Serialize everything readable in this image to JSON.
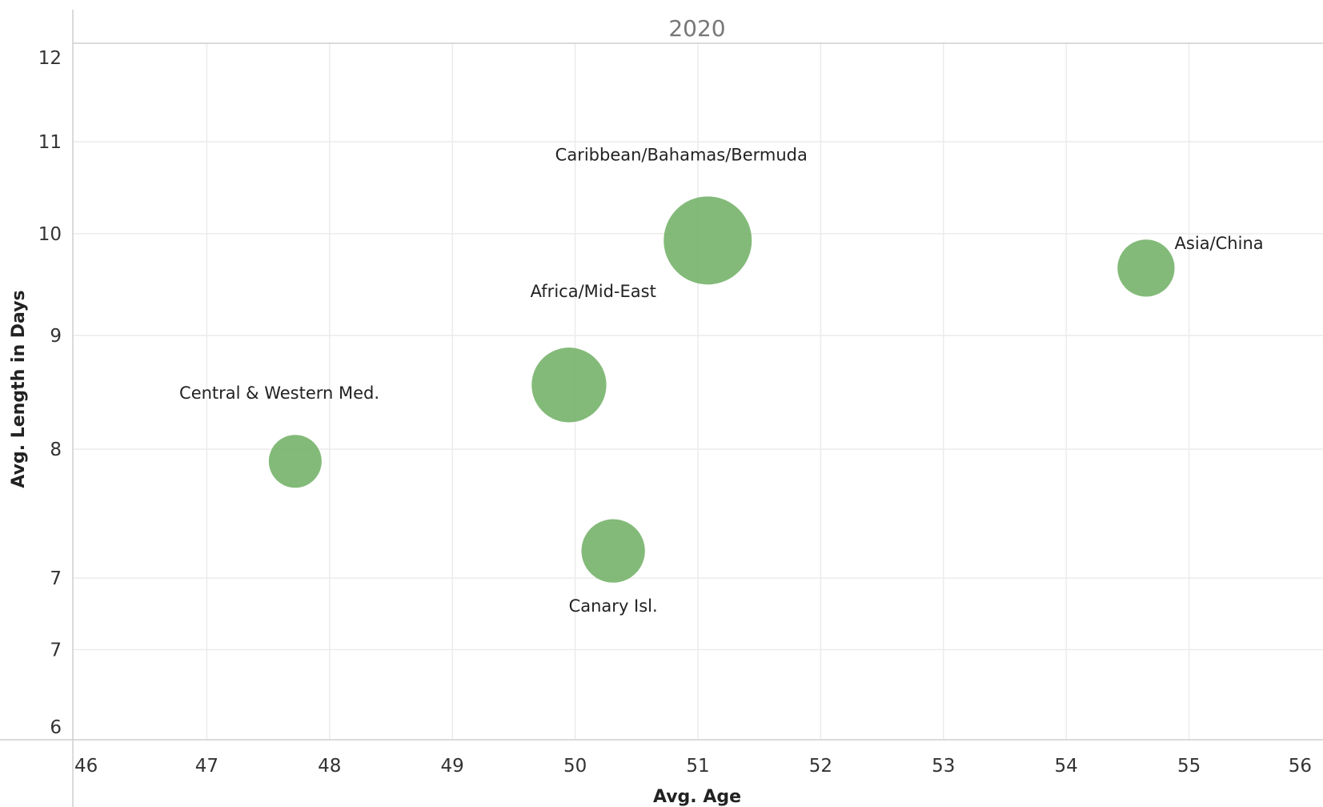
{
  "chart_data": {
    "type": "scatter",
    "panel_title": "2020",
    "xlabel": "Avg. Age",
    "ylabel": "Avg. Length in Days",
    "xlim": [
      46,
      56
    ],
    "x_ticks": [
      {
        "value": 46,
        "label": "46"
      },
      {
        "value": 47,
        "label": "47"
      },
      {
        "value": 48,
        "label": "48"
      },
      {
        "value": 49,
        "label": "49"
      },
      {
        "value": 50,
        "label": "50"
      },
      {
        "value": 51,
        "label": "51"
      },
      {
        "value": 52,
        "label": "52"
      },
      {
        "value": 53,
        "label": "53"
      },
      {
        "value": 54,
        "label": "54"
      },
      {
        "value": 55,
        "label": "55"
      },
      {
        "value": 56,
        "label": "56"
      }
    ],
    "y_scale": "log",
    "ylim": [
      6,
      12
    ],
    "y_ticks": [
      {
        "value": 6,
        "label": "6"
      },
      {
        "value": 6.5,
        "label": "7"
      },
      {
        "value": 7,
        "label": "7"
      },
      {
        "value": 8,
        "label": "8"
      },
      {
        "value": 9,
        "label": "9"
      },
      {
        "value": 10,
        "label": "10"
      },
      {
        "value": 11,
        "label": "11"
      },
      {
        "value": 12,
        "label": "12"
      }
    ],
    "grid": true,
    "bubble_color": "#76b36a",
    "points": [
      {
        "label": "Caribbean/Bahamas/Bermuda",
        "x": 51.08,
        "y": 9.93,
        "size": 100,
        "label_position": "top-left"
      },
      {
        "label": "Asia/China",
        "x": 54.65,
        "y": 9.65,
        "size": 42,
        "label_position": "top-right"
      },
      {
        "label": "Africa/Mid-East",
        "x": 49.95,
        "y": 8.55,
        "size": 72,
        "label_position": "top-right"
      },
      {
        "label": "Central & Western Med.",
        "x": 47.72,
        "y": 7.9,
        "size": 36,
        "label_position": "top-left"
      },
      {
        "label": "Canary Isl.",
        "x": 50.31,
        "y": 7.2,
        "size": 52,
        "label_position": "bottom"
      }
    ]
  }
}
